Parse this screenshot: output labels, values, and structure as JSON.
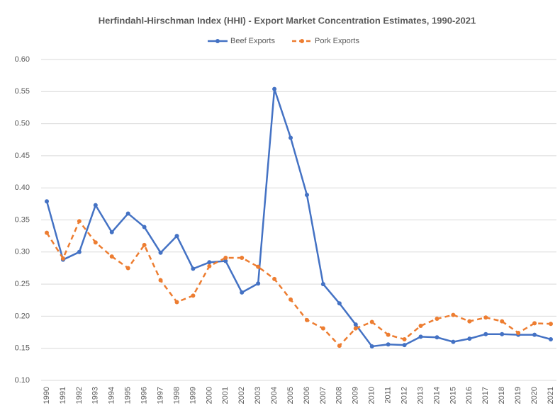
{
  "chart_data": {
    "type": "line",
    "title": "Herfindahl-Hirschman Index (HHI) - Export Market Concentration Estimates, 1990-2021",
    "categories": [
      "1990",
      "1991",
      "1992",
      "1993",
      "1994",
      "1995",
      "1996",
      "1997",
      "1998",
      "1999",
      "2000",
      "2001",
      "2002",
      "2003",
      "2004",
      "2005",
      "2006",
      "2007",
      "2008",
      "2009",
      "2010",
      "2011",
      "2012",
      "2013",
      "2014",
      "2015",
      "2016",
      "2017",
      "2018",
      "2019",
      "2020",
      "2021"
    ],
    "series": [
      {
        "name": "Beef Exports",
        "color": "#4472c4",
        "line_style": "solid",
        "values": [
          0.379,
          0.288,
          0.3,
          0.373,
          0.331,
          0.36,
          0.339,
          0.299,
          0.325,
          0.274,
          0.284,
          0.286,
          0.237,
          0.251,
          0.554,
          0.478,
          0.389,
          0.25,
          0.22,
          0.187,
          0.153,
          0.156,
          0.155,
          0.168,
          0.167,
          0.16,
          0.165,
          0.172,
          0.172,
          0.171,
          0.171,
          0.164
        ]
      },
      {
        "name": "Pork Exports",
        "color": "#ed7d31",
        "line_style": "dashed",
        "values": [
          0.33,
          0.29,
          0.348,
          0.315,
          0.293,
          0.275,
          0.311,
          0.256,
          0.222,
          0.232,
          0.278,
          0.291,
          0.291,
          0.277,
          0.258,
          0.226,
          0.194,
          0.181,
          0.154,
          0.181,
          0.191,
          0.171,
          0.164,
          0.185,
          0.196,
          0.202,
          0.192,
          0.198,
          0.192,
          0.174,
          0.189,
          0.188
        ]
      }
    ],
    "ylim": [
      0.1,
      0.6
    ],
    "yticks": [
      {
        "value": 0.1,
        "label": "0.10"
      },
      {
        "value": 0.15,
        "label": "0.15"
      },
      {
        "value": 0.2,
        "label": "0.20"
      },
      {
        "value": 0.25,
        "label": "0.25"
      },
      {
        "value": 0.3,
        "label": "0.30"
      },
      {
        "value": 0.35,
        "label": "0.35"
      },
      {
        "value": 0.4,
        "label": "0.40"
      },
      {
        "value": 0.45,
        "label": "0.45"
      },
      {
        "value": 0.5,
        "label": "0.50"
      },
      {
        "value": 0.55,
        "label": "0.55"
      },
      {
        "value": 0.6,
        "label": "0.60"
      }
    ],
    "grid": true,
    "legend": "top"
  }
}
